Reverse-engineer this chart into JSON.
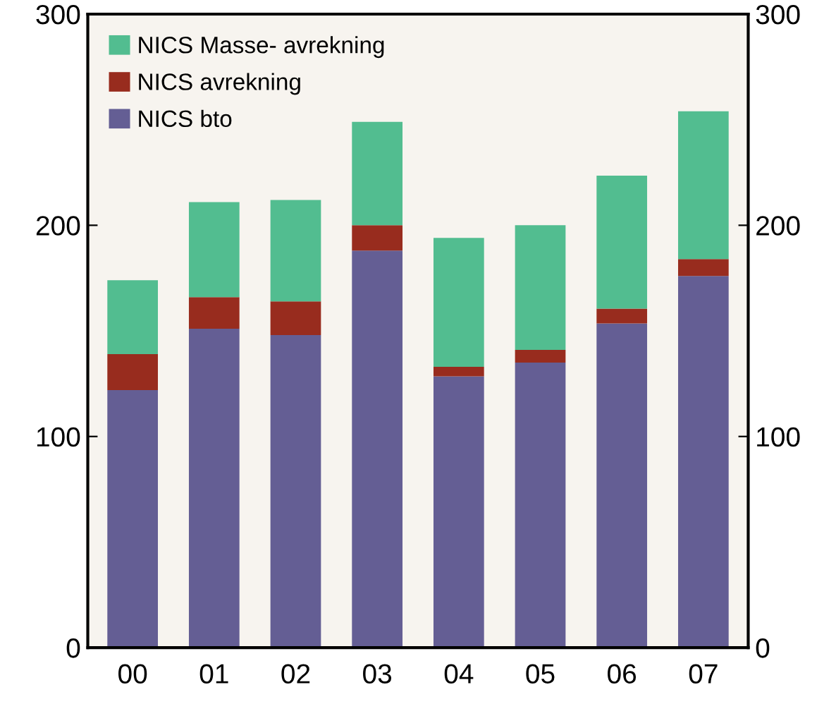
{
  "chart_data": {
    "type": "bar",
    "stacked": true,
    "categories": [
      "00",
      "01",
      "02",
      "03",
      "04",
      "05",
      "06",
      "07"
    ],
    "series": [
      {
        "name": "NICS bto",
        "color": "#645e94",
        "values": [
          122,
          151,
          148,
          188,
          128.5,
          135,
          153.5,
          176
        ]
      },
      {
        "name": "NICS avrekning",
        "color": "#982c1e",
        "values": [
          17,
          15,
          16,
          12,
          4.5,
          6,
          7,
          8
        ]
      },
      {
        "name": "NICS Masse- avrekning",
        "color": "#52bd90",
        "values": [
          35,
          45,
          48,
          49,
          61,
          59,
          63,
          70
        ]
      }
    ],
    "ylim": [
      0,
      300
    ],
    "yticks": [
      0,
      100,
      200,
      300
    ],
    "y2lim": [
      0,
      300
    ],
    "y2ticks": [
      0,
      100,
      200,
      300
    ],
    "legend": "top left",
    "grid": false
  }
}
